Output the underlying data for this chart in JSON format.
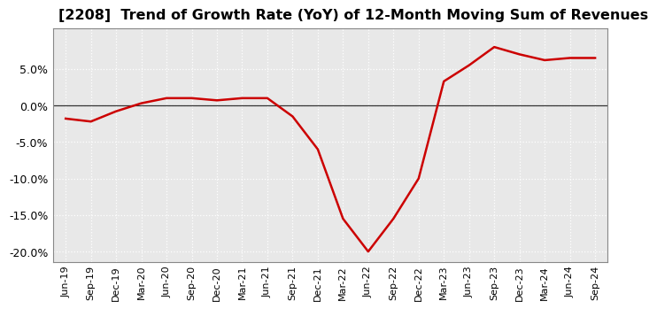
{
  "title": "[2208]  Trend of Growth Rate (YoY) of 12-Month Moving Sum of Revenues",
  "title_fontsize": 11.5,
  "line_color": "#cc0000",
  "background_color": "#ffffff",
  "plot_bg_color": "#e8e8e8",
  "ylim": [
    -0.215,
    0.105
  ],
  "yticks": [
    -0.2,
    -0.15,
    -0.1,
    -0.05,
    0.0,
    0.05
  ],
  "grid_color": "#ffffff",
  "x_labels": [
    "Jun-19",
    "Sep-19",
    "Dec-19",
    "Mar-20",
    "Jun-20",
    "Sep-20",
    "Dec-20",
    "Mar-21",
    "Jun-21",
    "Sep-21",
    "Dec-21",
    "Mar-22",
    "Jun-22",
    "Sep-22",
    "Dec-22",
    "Mar-23",
    "Jun-23",
    "Sep-23",
    "Dec-23",
    "Mar-24",
    "Jun-24",
    "Sep-24"
  ],
  "values": [
    -0.018,
    -0.022,
    -0.008,
    0.003,
    0.01,
    0.01,
    0.007,
    0.01,
    0.01,
    -0.015,
    -0.06,
    -0.155,
    -0.2,
    -0.155,
    -0.1,
    0.033,
    0.055,
    0.08,
    0.07,
    0.062,
    0.065,
    0.065
  ]
}
